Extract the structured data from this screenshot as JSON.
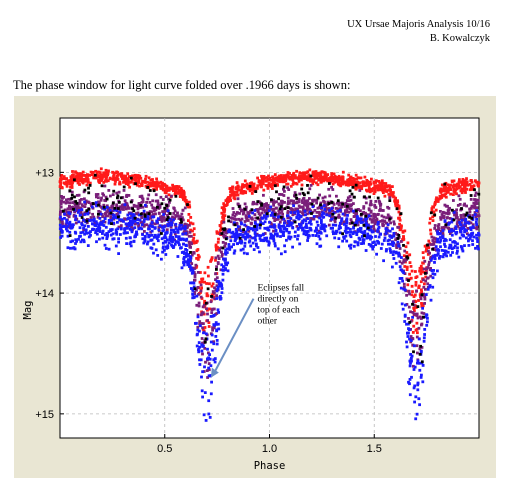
{
  "header": {
    "line1": "UX Ursae Majoris Analysis 10/16",
    "line2": "B. Kowalczyk"
  },
  "intro_text": "The phase window for light curve folded over .1966 days is shown:",
  "chart_data": {
    "type": "scatter",
    "title": "",
    "xlabel": "Phase",
    "ylabel": "Mag",
    "xlim": [
      0.0,
      2.0
    ],
    "ylim": [
      15.2,
      12.55
    ],
    "y_inverted": true,
    "x_ticks": [
      0.5,
      1.0,
      1.5
    ],
    "x_tick_labels": [
      "0.5",
      "1.0",
      "1.5"
    ],
    "y_ticks": [
      13,
      14,
      15
    ],
    "y_tick_labels": [
      "+13",
      "+14",
      "+15"
    ],
    "grid": true,
    "eclipse_phases": [
      0.7,
      1.7
    ],
    "series": [
      {
        "color": "#ff1a1a",
        "envelope": "upper",
        "baseline_mag": 13.1,
        "eclipse_min_mag": 14.3
      },
      {
        "color": "#7a1f7a",
        "envelope": "middle",
        "baseline_mag": 13.35,
        "eclipse_min_mag": 14.55
      },
      {
        "color": "#1a1aff",
        "envelope": "lower",
        "baseline_mag": 13.5,
        "eclipse_min_mag": 14.98
      },
      {
        "color": "#000000",
        "envelope": "scattered",
        "baseline_mag": 13.3,
        "eclipse_min_mag": 14.5
      }
    ],
    "annotations": [
      {
        "lines": [
          "Eclipses fall",
          "directly on",
          "top of each",
          "other"
        ],
        "points_to": {
          "x": 0.72,
          "y": 14.7
        }
      }
    ]
  }
}
